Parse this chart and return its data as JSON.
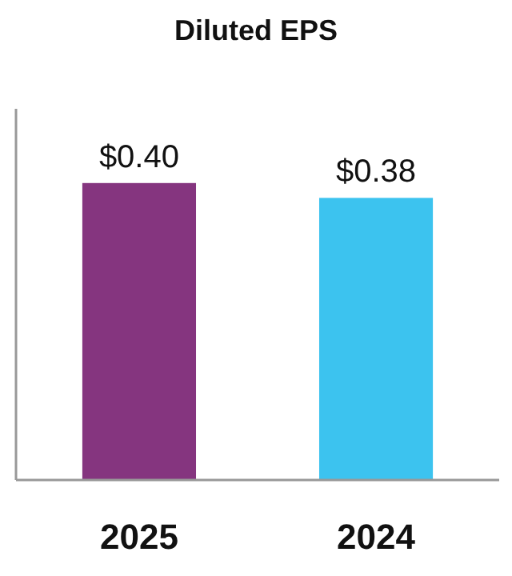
{
  "chart_data": {
    "type": "bar",
    "title": "Diluted EPS",
    "categories": [
      "2025",
      "2024"
    ],
    "values": [
      0.4,
      0.38
    ],
    "colors": [
      "#85357f",
      "#3cc3ef"
    ],
    "value_labels": [
      "$0.40",
      "$0.38"
    ],
    "ylim": [
      0,
      0.5
    ],
    "tick_labels": "x"
  }
}
